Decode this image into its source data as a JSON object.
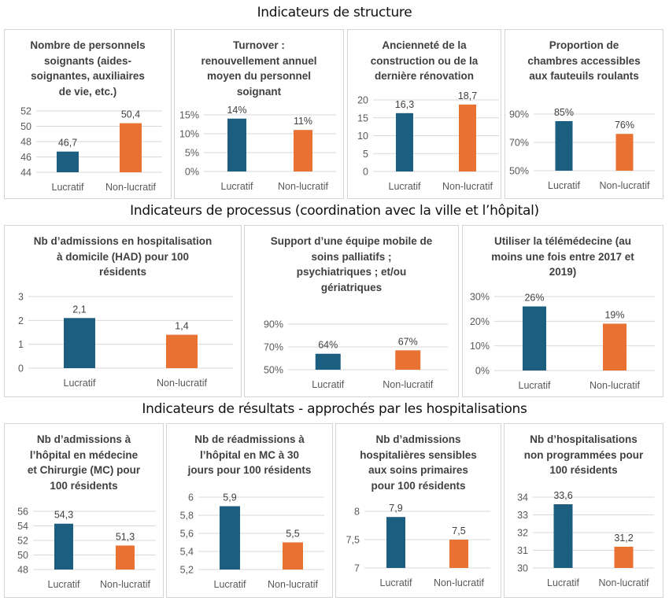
{
  "sections": [
    {
      "title": "Indicateurs de structure"
    },
    {
      "title": "Indicateurs de processus (coordination avec la ville et l’hôpital)"
    },
    {
      "title": "Indicateurs de résultats - approchés par les hospitalisations"
    }
  ],
  "colors": {
    "lucratif": "#1B5E80",
    "non_lucratif": "#E97132",
    "grid": "#d9d9d9"
  },
  "chart_data": [
    {
      "type": "bar",
      "section": 0,
      "title": "Nombre de personnels soignants (aides-soignantes, auxiliaires de vie, etc.)",
      "title_lines": [
        "Nombre de personnels",
        "soignants (aides-",
        "soignantes, auxiliaires",
        "de vie, etc.)"
      ],
      "categories": [
        "Lucratif",
        "Non-lucratif"
      ],
      "values": [
        46.7,
        50.4
      ],
      "labels": [
        "46,7",
        "50,4"
      ],
      "yticks": [
        "44",
        "46",
        "48",
        "50",
        "52"
      ],
      "ylim": [
        44,
        52
      ]
    },
    {
      "type": "bar",
      "section": 0,
      "title": "Turnover : renouvellement annuel moyen du personnel soignant",
      "title_lines": [
        "Turnover :",
        "renouvellement annuel",
        "moyen du personnel",
        "soignant"
      ],
      "categories": [
        "Lucratif",
        "Non-lucratif"
      ],
      "values": [
        14,
        11
      ],
      "labels": [
        "14%",
        "11%"
      ],
      "yticks": [
        "0%",
        "5%",
        "10%",
        "15%"
      ],
      "ylim": [
        0,
        15
      ]
    },
    {
      "type": "bar",
      "section": 0,
      "title": "Ancienneté de la construction ou de la dernière rénovation",
      "title_lines": [
        "Ancienneté de la",
        "construction ou de la",
        "dernière rénovation"
      ],
      "categories": [
        "Lucratif",
        "Non-lucratif"
      ],
      "values": [
        16.3,
        18.7
      ],
      "labels": [
        "16,3",
        "18,7"
      ],
      "yticks": [
        "0",
        "5",
        "10",
        "15",
        "20"
      ],
      "ylim": [
        0,
        20
      ]
    },
    {
      "type": "bar",
      "section": 0,
      "title": "Proportion de chambres accessibles aux fauteuils roulants",
      "title_lines": [
        "Proportion de",
        "chambres accessibles",
        "aux fauteuils roulants"
      ],
      "categories": [
        "Lucratif",
        "Non-lucratif"
      ],
      "values": [
        85,
        76
      ],
      "labels": [
        "85%",
        "76%"
      ],
      "yticks": [
        "50%",
        "70%",
        "90%"
      ],
      "ylim": [
        50,
        90
      ]
    },
    {
      "type": "bar",
      "section": 1,
      "title": "Nb d’admissions en hospitalisation à domicile (HAD) pour 100 résidents",
      "title_lines": [
        "Nb d’admissions en hospitalisation",
        "à domicile (HAD)  pour 100",
        "résidents"
      ],
      "categories": [
        "Lucratif",
        "Non-lucratif"
      ],
      "values": [
        2.1,
        1.4
      ],
      "labels": [
        "2,1",
        "1,4"
      ],
      "yticks": [
        "0",
        "1",
        "2",
        "3"
      ],
      "ylim": [
        0,
        3
      ]
    },
    {
      "type": "bar",
      "section": 1,
      "title": "Support d’une équipe mobile de soins palliatifs ; psychiatriques ; et/ou gériatriques",
      "title_lines": [
        "Support d’une équipe mobile de",
        "soins palliatifs ;",
        "psychiatriques ; et/ou",
        "gériatriques"
      ],
      "categories": [
        "Lucratif",
        "Non-lucratif"
      ],
      "values": [
        64,
        67
      ],
      "labels": [
        "64%",
        "67%"
      ],
      "yticks": [
        "50%",
        "70%",
        "90%"
      ],
      "ylim": [
        50,
        90
      ]
    },
    {
      "type": "bar",
      "section": 1,
      "title": "Utiliser la télémédecine (au moins une fois entre 2017 et 2019)",
      "title_lines": [
        "Utiliser la télémédecine (au",
        "moins une fois entre 2017 et",
        "2019)"
      ],
      "categories": [
        "Lucratif",
        "Non-lucratif"
      ],
      "values": [
        26,
        19
      ],
      "labels": [
        "26%",
        "19%"
      ],
      "yticks": [
        "0%",
        "10%",
        "20%",
        "30%"
      ],
      "ylim": [
        0,
        30
      ]
    },
    {
      "type": "bar",
      "section": 2,
      "title": "Nb d’admissions à l’hôpital en médecine et Chirurgie (MC) pour 100 résidents",
      "title_lines": [
        "Nb d’admissions à",
        "l’hôpital en médecine",
        "et Chirurgie (MC) pour",
        "100 résidents"
      ],
      "categories": [
        "Lucratif",
        "Non-lucratif"
      ],
      "values": [
        54.3,
        51.3
      ],
      "labels": [
        "54,3",
        "51,3"
      ],
      "yticks": [
        "48",
        "50",
        "52",
        "54",
        "56"
      ],
      "ylim": [
        48,
        56
      ]
    },
    {
      "type": "bar",
      "section": 2,
      "title": "Nb de réadmissions à l’hôpital en MC à 30 jours pour 100 résidents",
      "title_lines": [
        "Nb de réadmissions à",
        "l’hôpital en MC à 30",
        "jours pour 100 résidents"
      ],
      "categories": [
        "Lucratif",
        "Non-lucratif"
      ],
      "values": [
        5.9,
        5.5
      ],
      "labels": [
        "5,9",
        "5,5"
      ],
      "yticks": [
        "5,2",
        "5,4",
        "5,6",
        "5,8",
        "6"
      ],
      "ylim": [
        5.2,
        6.0
      ]
    },
    {
      "type": "bar",
      "section": 2,
      "title": "Nb d’admissions hospitalières sensibles aux soins primaires pour 100 résidents",
      "title_lines": [
        "Nb d’admissions",
        "hospitalières sensibles",
        "aux soins primaires",
        "pour 100 résidents"
      ],
      "categories": [
        "Lucratif",
        "Non-lucratif"
      ],
      "values": [
        7.9,
        7.5
      ],
      "labels": [
        "7,9",
        "7,5"
      ],
      "yticks": [
        "7",
        "7,5",
        "8"
      ],
      "ylim": [
        7,
        8
      ]
    },
    {
      "type": "bar",
      "section": 2,
      "title": "Nb d’hospitalisations non programmées pour 100 résidents",
      "title_lines": [
        "Nb d’hospitalisations",
        "non programmées pour",
        "100 résidents"
      ],
      "categories": [
        "Lucratif",
        "Non-lucratif"
      ],
      "values": [
        33.6,
        31.2
      ],
      "labels": [
        "33,6",
        "31,2"
      ],
      "yticks": [
        "30",
        "31",
        "32",
        "33",
        "34"
      ],
      "ylim": [
        30,
        34
      ]
    }
  ]
}
